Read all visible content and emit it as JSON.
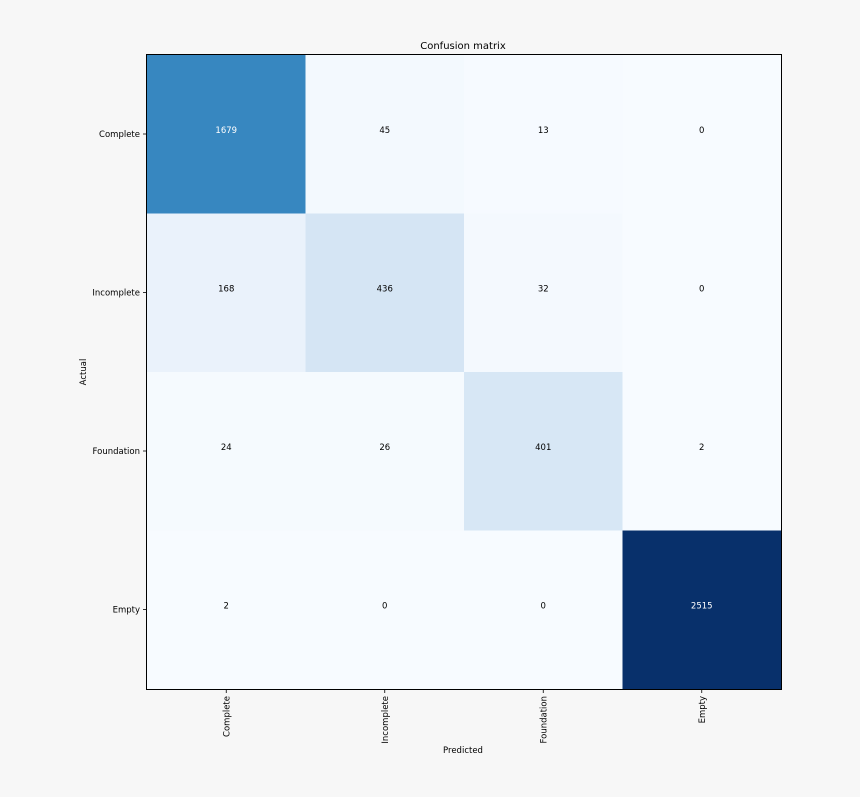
{
  "chart_data": {
    "type": "heatmap",
    "title": "Confusion matrix",
    "xlabel": "Predicted",
    "ylabel": "Actual",
    "x_categories": [
      "Complete",
      "Incomplete",
      "Foundation",
      "Empty"
    ],
    "y_categories": [
      "Complete",
      "Incomplete",
      "Foundation",
      "Empty"
    ],
    "values": [
      [
        1679,
        45,
        13,
        0
      ],
      [
        168,
        436,
        32,
        0
      ],
      [
        24,
        26,
        401,
        2
      ],
      [
        2,
        0,
        0,
        2515
      ]
    ],
    "colormap": "Blues",
    "colormap_stops": [
      "#f7fbff",
      "#deebf7",
      "#c6dbef",
      "#9ecae1",
      "#6baed6",
      "#4292c6",
      "#2171b5",
      "#08519c",
      "#08306b"
    ],
    "text_color_dark": "#000000",
    "text_color_light": "#ffffff",
    "grid": false
  }
}
